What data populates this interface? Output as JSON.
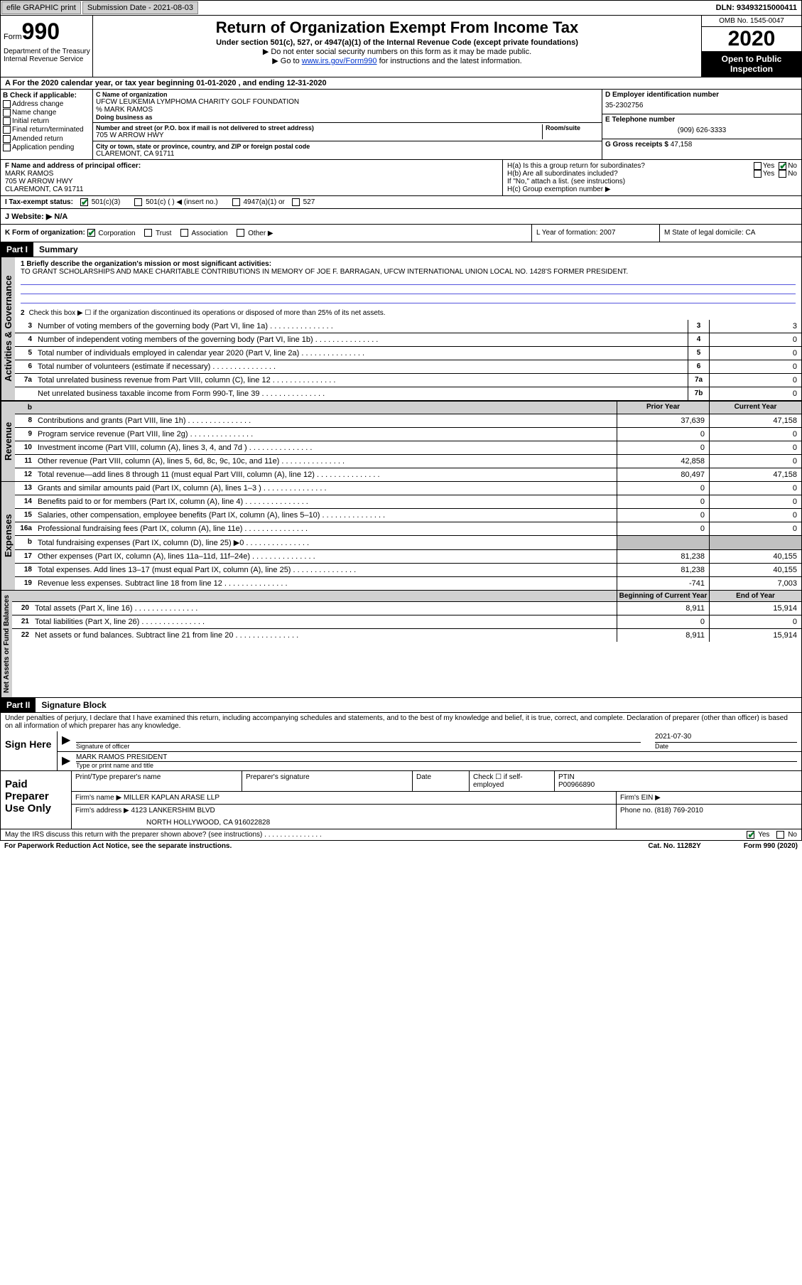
{
  "topbar": {
    "efile": "efile GRAPHIC print",
    "submission_label": "Submission Date - 2021-08-03",
    "dln": "DLN: 93493215000411"
  },
  "header": {
    "form_label": "Form",
    "form_number": "990",
    "main_title": "Return of Organization Exempt From Income Tax",
    "sub1": "Under section 501(c), 527, or 4947(a)(1) of the Internal Revenue Code (except private foundations)",
    "sub2": "▶ Do not enter social security numbers on this form as it may be made public.",
    "sub3_prefix": "▶ Go to ",
    "sub3_link": "www.irs.gov/Form990",
    "sub3_suffix": " for instructions and the latest information.",
    "omb": "OMB No. 1545-0047",
    "year": "2020",
    "open": "Open to Public Inspection",
    "dept": "Department of the Treasury Internal Revenue Service"
  },
  "period": "A For the 2020 calendar year, or tax year beginning 01-01-2020    , and ending 12-31-2020",
  "checkB": {
    "label": "B Check if applicable:",
    "items": [
      "Address change",
      "Name change",
      "Initial return",
      "Final return/terminated",
      "Amended return",
      "Application pending"
    ]
  },
  "orgC": {
    "name_lbl": "C Name of organization",
    "name1": "UFCW LEUKEMIA LYMPHOMA CHARITY GOLF FOUNDATION",
    "name2": "% MARK RAMOS",
    "dba_lbl": "Doing business as",
    "addr_lbl": "Number and street (or P.O. box if mail is not delivered to street address)",
    "room_lbl": "Room/suite",
    "addr": "705 W ARROW HWY",
    "city_lbl": "City or town, state or province, country, and ZIP or foreign postal code",
    "city": "CLAREMONT, CA  91711"
  },
  "colD": {
    "ein_lbl": "D Employer identification number",
    "ein": "35-2302756",
    "tel_lbl": "E Telephone number",
    "tel": "(909) 626-3333",
    "gross_lbl": "G Gross receipts $",
    "gross": "47,158"
  },
  "fgh": {
    "f_lbl": "F Name and address of principal officer:",
    "f_name": "MARK RAMOS",
    "f_addr1": "705 W ARROW HWY",
    "f_addr2": "CLAREMONT, CA  91711",
    "ha": "H(a)  Is this a group return for subordinates?",
    "hb": "H(b)  Are all subordinates included?",
    "hb_note": "If \"No,\" attach a list. (see instructions)",
    "hc": "H(c)  Group exemption number ▶",
    "yes": "Yes",
    "no": "No"
  },
  "taxI": {
    "label": "I  Tax-exempt status:",
    "opt1": "501(c)(3)",
    "opt2": "501(c) (  ) ◀ (insert no.)",
    "opt3": "4947(a)(1) or",
    "opt4": "527"
  },
  "websiteJ": {
    "label": "J  Website: ▶",
    "value": "N/A"
  },
  "rowK": {
    "label": "K Form of organization:",
    "corp": "Corporation",
    "trust": "Trust",
    "assoc": "Association",
    "other": "Other ▶",
    "l": "L Year of formation: 2007",
    "m": "M State of legal domicile: CA"
  },
  "part1": {
    "header": "Part I",
    "title": "Summary",
    "line1_lbl": "1  Briefly describe the organization's mission or most significant activities:",
    "mission": "TO GRANT SCHOLARSHIPS AND MAKE CHARITABLE CONTRIBUTIONS IN MEMORY OF JOE F. BARRAGAN, UFCW INTERNATIONAL UNION LOCAL NO. 1428'S FORMER PRESIDENT.",
    "line2": "Check this box ▶ ☐  if the organization discontinued its operations or disposed of more than 25% of its net assets.",
    "side_gov": "Activities & Governance",
    "side_rev": "Revenue",
    "side_exp": "Expenses",
    "side_net": "Net Assets or Fund Balances"
  },
  "gov_lines": [
    {
      "n": "3",
      "t": "Number of voting members of the governing body (Part VI, line 1a)",
      "box": "3",
      "v": "3"
    },
    {
      "n": "4",
      "t": "Number of independent voting members of the governing body (Part VI, line 1b)",
      "box": "4",
      "v": "0"
    },
    {
      "n": "5",
      "t": "Total number of individuals employed in calendar year 2020 (Part V, line 2a)",
      "box": "5",
      "v": "0"
    },
    {
      "n": "6",
      "t": "Total number of volunteers (estimate if necessary)",
      "box": "6",
      "v": "0"
    },
    {
      "n": "7a",
      "t": "Total unrelated business revenue from Part VIII, column (C), line 12",
      "box": "7a",
      "v": "0"
    },
    {
      "n": "",
      "t": "Net unrelated business taxable income from Form 990-T, line 39",
      "box": "7b",
      "v": "0"
    }
  ],
  "col_headers": {
    "prior": "Prior Year",
    "current": "Current Year"
  },
  "rev_lines": [
    {
      "n": "8",
      "t": "Contributions and grants (Part VIII, line 1h)",
      "p": "37,639",
      "c": "47,158"
    },
    {
      "n": "9",
      "t": "Program service revenue (Part VIII, line 2g)",
      "p": "0",
      "c": "0"
    },
    {
      "n": "10",
      "t": "Investment income (Part VIII, column (A), lines 3, 4, and 7d )",
      "p": "0",
      "c": "0"
    },
    {
      "n": "11",
      "t": "Other revenue (Part VIII, column (A), lines 5, 6d, 8c, 9c, 10c, and 11e)",
      "p": "42,858",
      "c": "0"
    },
    {
      "n": "12",
      "t": "Total revenue—add lines 8 through 11 (must equal Part VIII, column (A), line 12)",
      "p": "80,497",
      "c": "47,158"
    }
  ],
  "exp_lines": [
    {
      "n": "13",
      "t": "Grants and similar amounts paid (Part IX, column (A), lines 1–3 )",
      "p": "0",
      "c": "0"
    },
    {
      "n": "14",
      "t": "Benefits paid to or for members (Part IX, column (A), line 4)",
      "p": "0",
      "c": "0"
    },
    {
      "n": "15",
      "t": "Salaries, other compensation, employee benefits (Part IX, column (A), lines 5–10)",
      "p": "0",
      "c": "0"
    },
    {
      "n": "16a",
      "t": "Professional fundraising fees (Part IX, column (A), line 11e)",
      "p": "0",
      "c": "0"
    },
    {
      "n": "b",
      "t": "Total fundraising expenses (Part IX, column (D), line 25) ▶0",
      "p_shaded": true,
      "c_shaded": true
    },
    {
      "n": "17",
      "t": "Other expenses (Part IX, column (A), lines 11a–11d, 11f–24e)",
      "p": "81,238",
      "c": "40,155"
    },
    {
      "n": "18",
      "t": "Total expenses. Add lines 13–17 (must equal Part IX, column (A), line 25)",
      "p": "81,238",
      "c": "40,155"
    },
    {
      "n": "19",
      "t": "Revenue less expenses. Subtract line 18 from line 12",
      "p": "-741",
      "c": "7,003"
    }
  ],
  "net_headers": {
    "begin": "Beginning of Current Year",
    "end": "End of Year"
  },
  "net_lines": [
    {
      "n": "20",
      "t": "Total assets (Part X, line 16)",
      "p": "8,911",
      "c": "15,914"
    },
    {
      "n": "21",
      "t": "Total liabilities (Part X, line 26)",
      "p": "0",
      "c": "0"
    },
    {
      "n": "22",
      "t": "Net assets or fund balances. Subtract line 21 from line 20",
      "p": "8,911",
      "c": "15,914"
    }
  ],
  "part2": {
    "header": "Part II",
    "title": "Signature Block",
    "penalties": "Under penalties of perjury, I declare that I have examined this return, including accompanying schedules and statements, and to the best of my knowledge and belief, it is true, correct, and complete. Declaration of preparer (other than officer) is based on all information of which preparer has any knowledge.",
    "sign_here": "Sign Here",
    "sig_officer": "Signature of officer",
    "sig_date_lbl": "Date",
    "sig_date": "2021-07-30",
    "type_name": "MARK RAMOS  PRESIDENT",
    "type_name_lbl": "Type or print name and title"
  },
  "paid": {
    "label": "Paid Preparer Use Only",
    "h1": "Print/Type preparer's name",
    "h2": "Preparer's signature",
    "h3": "Date",
    "h4_lbl": "Check ☐ if self-employed",
    "ptin_lbl": "PTIN",
    "ptin": "P00966890",
    "firm_name_lbl": "Firm's name    ▶",
    "firm_name": "MILLER KAPLAN ARASE LLP",
    "firm_ein_lbl": "Firm's EIN ▶",
    "firm_addr_lbl": "Firm's address ▶",
    "firm_addr1": "4123 LANKERSHIM BLVD",
    "firm_addr2": "NORTH HOLLYWOOD, CA  916022828",
    "phone_lbl": "Phone no.",
    "phone": "(818) 769-2010"
  },
  "footer": {
    "discuss": "May the IRS discuss this return with the preparer shown above? (see instructions)",
    "yes": "Yes",
    "no": "No",
    "notice": "For Paperwork Reduction Act Notice, see the separate instructions.",
    "cat": "Cat. No. 11282Y",
    "form": "Form 990 (2020)"
  }
}
